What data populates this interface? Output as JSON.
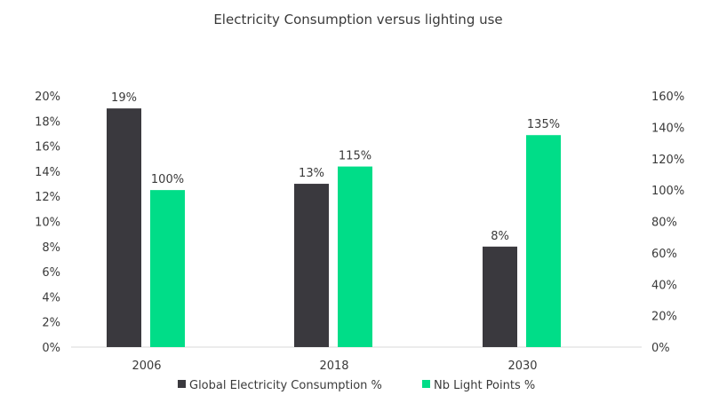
{
  "chart_data": {
    "type": "bar",
    "title": "Electricity Consumption versus lighting use",
    "categories": [
      "2006",
      "2018",
      "2030"
    ],
    "series": [
      {
        "name": "Global Electricity Consumption %",
        "axis": "left",
        "values": [
          19,
          13,
          8
        ],
        "labels": [
          "19%",
          "13%",
          "8%"
        ],
        "color": "#3a393e"
      },
      {
        "name": "Nb Light Points %",
        "axis": "right",
        "values": [
          100,
          115,
          135
        ],
        "labels": [
          "100%",
          "115%",
          "135%"
        ],
        "color": "#00dd88"
      }
    ],
    "y_left": {
      "lim": [
        0,
        20
      ],
      "ticks": [
        "0%",
        "2%",
        "4%",
        "6%",
        "8%",
        "10%",
        "12%",
        "14%",
        "16%",
        "18%",
        "20%"
      ]
    },
    "y_right": {
      "lim": [
        0,
        160
      ],
      "ticks": [
        "0%",
        "20%",
        "40%",
        "60%",
        "80%",
        "100%",
        "120%",
        "140%",
        "160%"
      ]
    },
    "grid": false,
    "legend": "bottom"
  }
}
